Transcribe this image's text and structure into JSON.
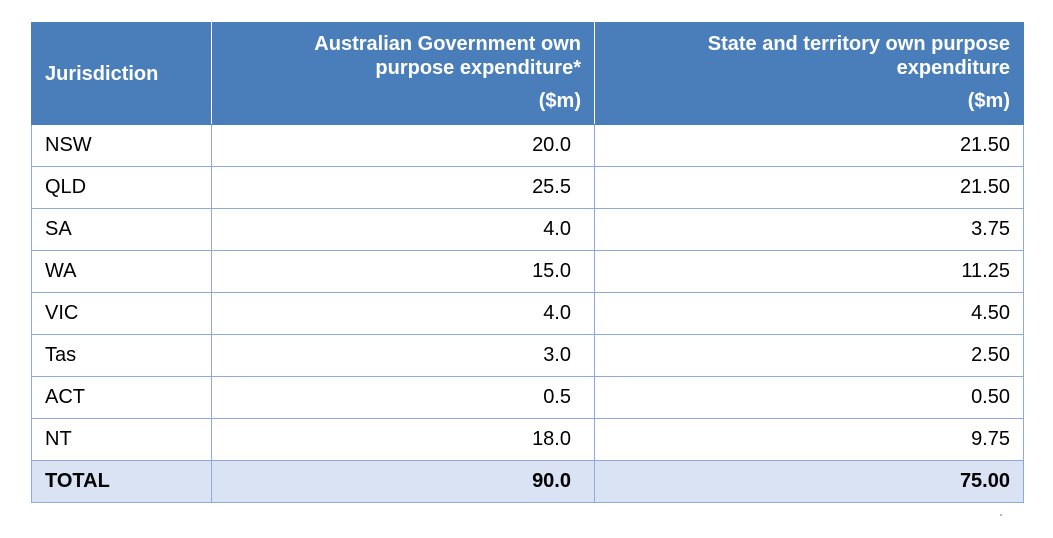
{
  "table": {
    "headers": {
      "jurisdiction": "Jurisdiction",
      "australian_gov": {
        "line1": "Australian Government own",
        "line2": "purpose expenditure*",
        "unit": "($m)"
      },
      "state_territory": {
        "line1": "State and territory own purpose",
        "line2": "expenditure",
        "unit": "($m)"
      }
    },
    "rows": [
      {
        "jurisdiction": "NSW",
        "australian_gov": "20.0",
        "state_territory": "21.50"
      },
      {
        "jurisdiction": "QLD",
        "australian_gov": "25.5",
        "state_territory": "21.50"
      },
      {
        "jurisdiction": "SA",
        "australian_gov": "4.0",
        "state_territory": "3.75"
      },
      {
        "jurisdiction": "WA",
        "australian_gov": "15.0",
        "state_territory": "11.25"
      },
      {
        "jurisdiction": "VIC",
        "australian_gov": "4.0",
        "state_territory": "4.50"
      },
      {
        "jurisdiction": "Tas",
        "australian_gov": "3.0",
        "state_territory": "2.50"
      },
      {
        "jurisdiction": "ACT",
        "australian_gov": "0.5",
        "state_territory": "0.50"
      },
      {
        "jurisdiction": "NT",
        "australian_gov": "18.0",
        "state_territory": "9.75"
      }
    ],
    "total": {
      "jurisdiction": "TOTAL",
      "australian_gov": "90.0",
      "state_territory": "75.00"
    }
  },
  "colors": {
    "header_bg": "#4a7ebb",
    "border": "#8eaadb",
    "total_bg": "#dae3f3"
  }
}
